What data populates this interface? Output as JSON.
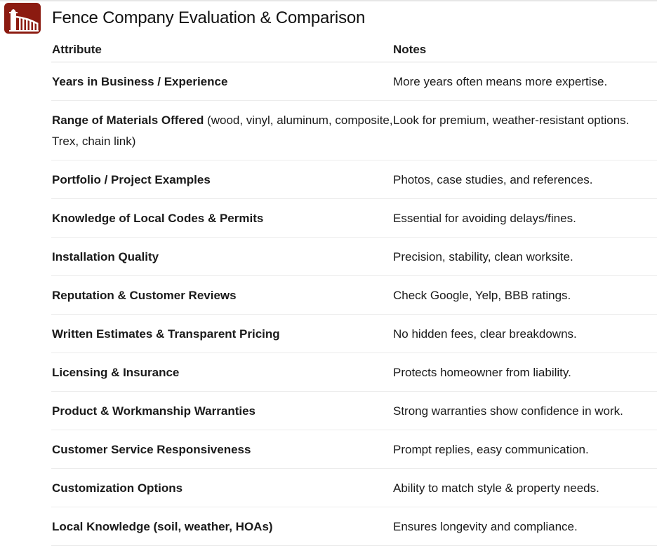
{
  "logo": {
    "icon": "fence-icon",
    "color": "#8b1a10"
  },
  "title": "Fence Company Evaluation & Comparison",
  "table": {
    "headers": [
      "Attribute",
      "Notes"
    ],
    "rows": [
      {
        "attribute": "Years in Business / Experience",
        "detail": "",
        "notes": "More years often means more expertise."
      },
      {
        "attribute": "Range of Materials Offered",
        "detail": " (wood, vinyl, aluminum, composite, Trex, chain link)",
        "notes": "Look for premium, weather-resistant options."
      },
      {
        "attribute": "Portfolio / Project Examples",
        "detail": "",
        "notes": "Photos, case studies, and references."
      },
      {
        "attribute": "Knowledge of Local Codes & Permits",
        "detail": "",
        "notes": "Essential for avoiding delays/fines."
      },
      {
        "attribute": "Installation Quality",
        "detail": "",
        "notes": "Precision, stability, clean worksite."
      },
      {
        "attribute": "Reputation & Customer Reviews",
        "detail": "",
        "notes": "Check Google, Yelp, BBB ratings."
      },
      {
        "attribute": "Written Estimates & Transparent Pricing",
        "detail": "",
        "notes": "No hidden fees, clear breakdowns."
      },
      {
        "attribute": "Licensing & Insurance",
        "detail": "",
        "notes": "Protects homeowner from liability."
      },
      {
        "attribute": "Product & Workmanship Warranties",
        "detail": "",
        "notes": "Strong warranties show confidence in work."
      },
      {
        "attribute": "Customer Service Responsiveness",
        "detail": "",
        "notes": "Prompt replies, easy communication."
      },
      {
        "attribute": "Customization Options",
        "detail": "",
        "notes": "Ability to match style & property needs."
      },
      {
        "attribute": "Local Knowledge (soil, weather, HOAs)",
        "detail": "",
        "notes": "Ensures longevity and compliance."
      }
    ]
  }
}
